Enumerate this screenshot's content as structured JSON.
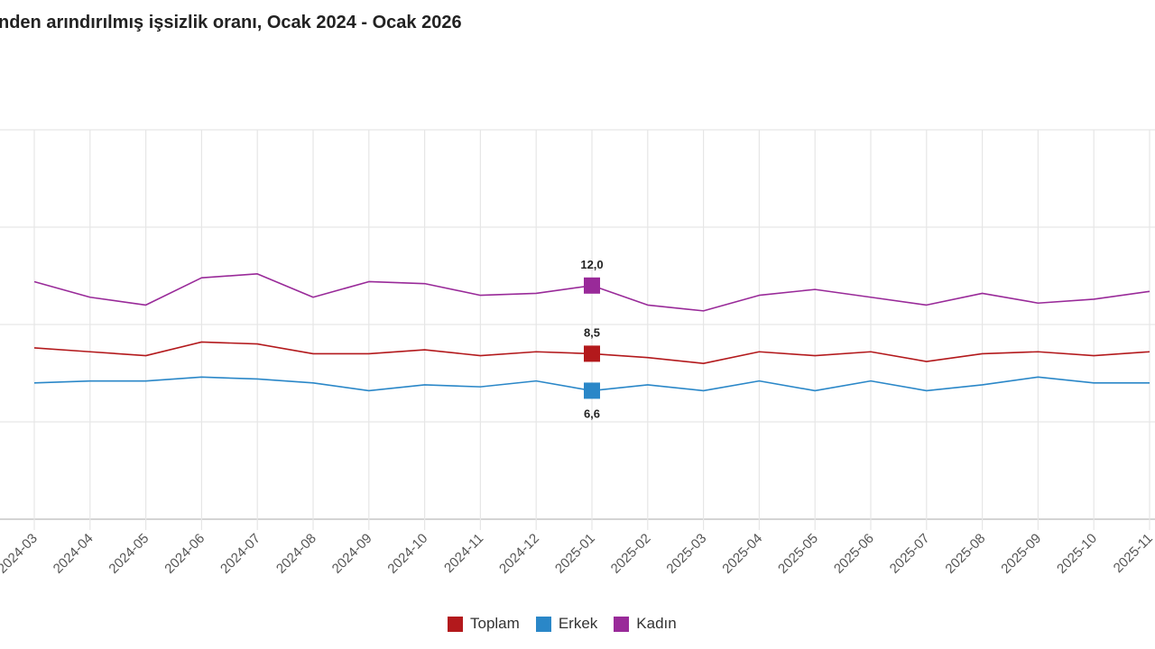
{
  "chart_data": {
    "type": "line",
    "title": "nden arındırılmış işsizlik oranı, Ocak 2024 - Ocak 2026",
    "xlabel": "",
    "ylabel": "",
    "ylim": [
      0,
      20
    ],
    "y_gridlines": [
      0,
      5,
      10,
      15,
      20
    ],
    "grid": true,
    "legend_placement": "bottom",
    "categories": [
      "2024-03",
      "2024-04",
      "2024-05",
      "2024-06",
      "2024-07",
      "2024-08",
      "2024-09",
      "2024-10",
      "2024-11",
      "2024-12",
      "2025-01",
      "2025-02",
      "2025-03",
      "2025-04",
      "2025-05",
      "2025-06",
      "2025-07",
      "2025-08",
      "2025-09",
      "2025-10",
      "2025-11"
    ],
    "series": [
      {
        "name": "Toplam",
        "color": "#b3191c",
        "values": [
          8.8,
          8.6,
          8.4,
          9.1,
          9.0,
          8.5,
          8.5,
          8.7,
          8.4,
          8.6,
          8.5,
          8.3,
          8.0,
          8.6,
          8.4,
          8.6,
          8.1,
          8.5,
          8.6,
          8.4,
          8.6
        ]
      },
      {
        "name": "Erkek",
        "color": "#2a87c8",
        "values": [
          7.0,
          7.1,
          7.1,
          7.3,
          7.2,
          7.0,
          6.6,
          6.9,
          6.8,
          7.1,
          6.6,
          6.9,
          6.6,
          7.1,
          6.6,
          7.1,
          6.6,
          6.9,
          7.3,
          7.0,
          7.0
        ]
      },
      {
        "name": "Kadın",
        "color": "#992a99",
        "values": [
          12.2,
          11.4,
          11.0,
          12.4,
          12.6,
          11.4,
          12.2,
          12.1,
          11.5,
          11.6,
          12.0,
          11.0,
          10.7,
          11.5,
          11.8,
          11.4,
          11.0,
          11.6,
          11.1,
          11.3,
          11.7
        ]
      }
    ],
    "highlighted_category": "2025-01",
    "data_labels": [
      {
        "series": "Kadın",
        "category": "2025-01",
        "text": "12,0"
      },
      {
        "series": "Toplam",
        "category": "2025-01",
        "text": "8,5"
      },
      {
        "series": "Erkek",
        "category": "2025-01",
        "text": "6,6"
      }
    ]
  }
}
